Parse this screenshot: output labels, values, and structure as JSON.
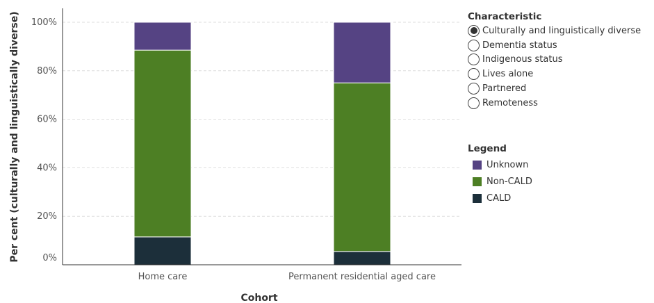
{
  "chart_data": {
    "type": "bar",
    "stacked": true,
    "categories": [
      "Home care",
      "Permanent residential aged care"
    ],
    "series": [
      {
        "name": "CALD",
        "values": [
          11.5,
          5.5
        ],
        "color": "#1c2f3a"
      },
      {
        "name": "Non-CALD",
        "values": [
          77.0,
          69.5
        ],
        "color": "#4d7f24"
      },
      {
        "name": "Unknown",
        "values": [
          11.5,
          25.0
        ],
        "color": "#554383"
      }
    ],
    "ylim": [
      0,
      100
    ],
    "yticks": [
      "0%",
      "20%",
      "40%",
      "60%",
      "80%",
      "100%"
    ],
    "xlabel": "Cohort",
    "ylabel": "Per cent (culturally and linguistically diverse)",
    "grid": true
  },
  "characteristic_panel": {
    "title": "Characteristic",
    "selected_index": 0,
    "options": [
      "Culturally and linguistically diverse",
      "Dementia status",
      "Indigenous status",
      "Lives alone",
      "Partnered",
      "Remoteness"
    ]
  },
  "legend": {
    "title": "Legend",
    "items": [
      {
        "label": "Unknown",
        "color": "#554383"
      },
      {
        "label": "Non-CALD",
        "color": "#4d7f24"
      },
      {
        "label": "CALD",
        "color": "#1c2f3a"
      }
    ]
  }
}
